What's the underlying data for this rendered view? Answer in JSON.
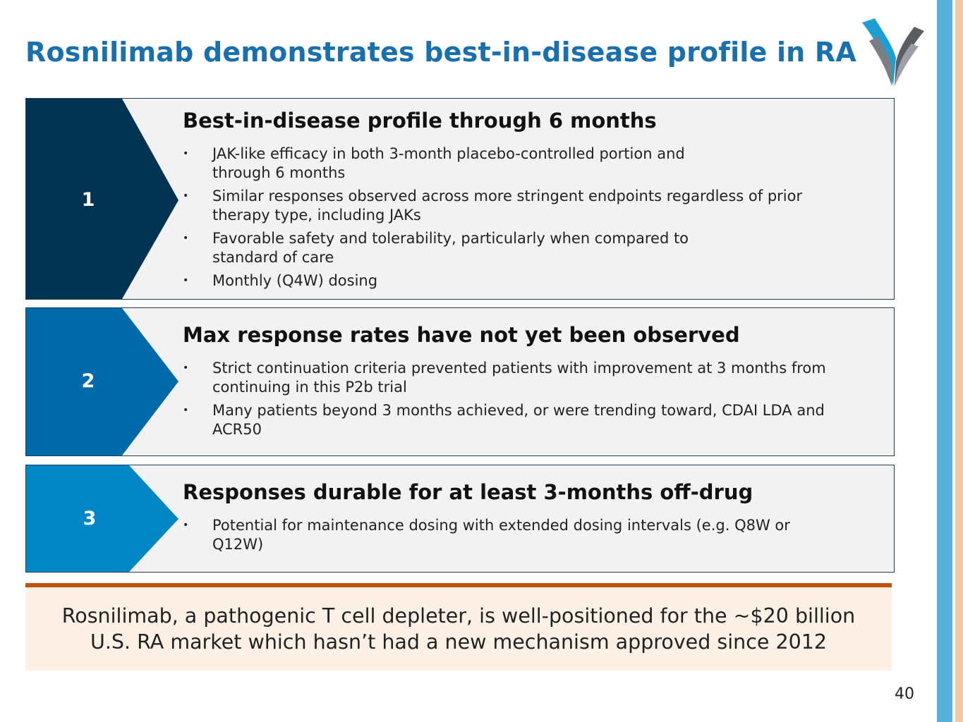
{
  "slide": {
    "title": "Rosnilimab demonstrates best-in-disease profile in RA",
    "page_number": "40"
  },
  "colors": {
    "title": "#1a6fad",
    "badge_1": "#003352",
    "badge_2": "#006aa9",
    "badge_3": "#0086c3",
    "footer_rule": "#c0530f",
    "footer_fill": "#fdf1e6"
  },
  "logo": {
    "icon": "company-chevron-logo-icon"
  },
  "panels": [
    {
      "number": "1",
      "heading": "Best-in-disease profile through 6 months",
      "bullets": [
        {
          "line1": "JAK-like efficacy in both 3-month placebo-controlled portion and",
          "line2": "through 6 months"
        },
        {
          "line1": "Similar responses observed across more stringent endpoints regardless of prior",
          "line2": "therapy type, including JAKs"
        },
        {
          "line1": "Favorable safety and tolerability, particularly when compared to",
          "line2": "standard of care"
        },
        {
          "line1": "Monthly (Q4W) dosing",
          "line2": ""
        }
      ]
    },
    {
      "number": "2",
      "heading": "Max response rates have not yet been observed",
      "bullets": [
        {
          "line1": "Strict continuation criteria prevented patients with improvement at 3 months from",
          "line2": "continuing in this P2b trial"
        },
        {
          "line1": "Many patients beyond 3 months achieved, or were trending toward, CDAI LDA and",
          "line2": "ACR50"
        }
      ]
    },
    {
      "number": "3",
      "heading": "Responses durable for at least 3-months off-drug",
      "bullets": [
        {
          "line1": "Potential for maintenance dosing with extended dosing intervals (e.g. Q8W or",
          "line2": "Q12W)"
        }
      ]
    }
  ],
  "footer": {
    "line1": "Rosnilimab, a pathogenic T cell depleter, is well-positioned for the ~$20 billion",
    "line2": "U.S. RA market which hasn’t had a new mechanism approved since 2012"
  }
}
